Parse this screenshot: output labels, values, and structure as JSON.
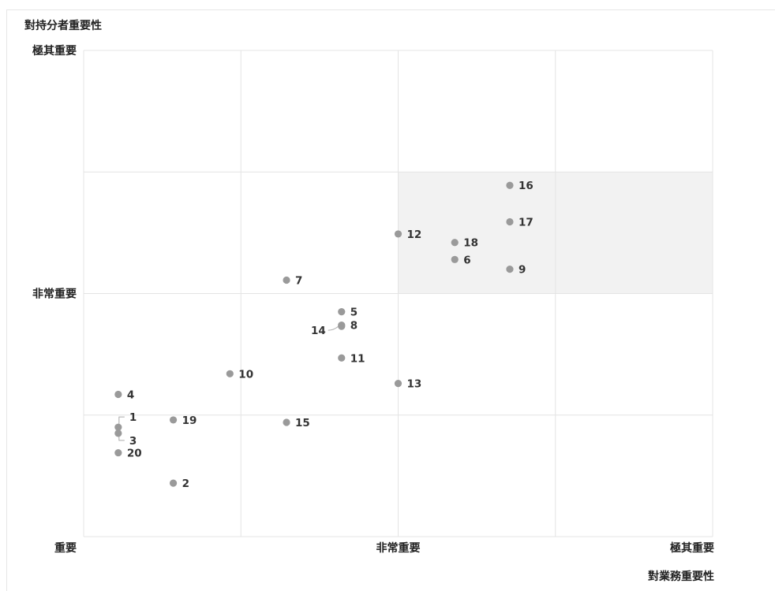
{
  "chart_data": {
    "type": "scatter",
    "ylabel": "對持分者重要性",
    "xlabel": "對業務重要性",
    "xlim": [
      0,
      4
    ],
    "ylim": [
      0,
      4
    ],
    "x_ticks": [
      {
        "value": 0,
        "label": "重要"
      },
      {
        "value": 2,
        "label": "非常重要"
      },
      {
        "value": 4,
        "label": "極其重要"
      }
    ],
    "y_ticks": [
      {
        "value": 2,
        "label": "非常重要"
      },
      {
        "value": 4,
        "label": "極其重要"
      }
    ],
    "grid": true,
    "highlight_region": {
      "x": [
        2,
        4
      ],
      "y": [
        2,
        3
      ]
    },
    "colors": {
      "point": "#9a9a9a",
      "grid": "#e4e4e4",
      "highlight": "#f2f2f2"
    },
    "points": [
      {
        "label": "1",
        "x": 0.22,
        "y": 0.9
      },
      {
        "label": "2",
        "x": 0.57,
        "y": 0.44
      },
      {
        "label": "3",
        "x": 0.22,
        "y": 0.85
      },
      {
        "label": "4",
        "x": 0.22,
        "y": 1.17
      },
      {
        "label": "5",
        "x": 1.64,
        "y": 1.85
      },
      {
        "label": "6",
        "x": 2.36,
        "y": 2.28
      },
      {
        "label": "7",
        "x": 1.29,
        "y": 2.11
      },
      {
        "label": "8",
        "x": 1.64,
        "y": 1.74
      },
      {
        "label": "9",
        "x": 2.71,
        "y": 2.2
      },
      {
        "label": "10",
        "x": 0.93,
        "y": 1.34
      },
      {
        "label": "11",
        "x": 1.64,
        "y": 1.47
      },
      {
        "label": "12",
        "x": 2.0,
        "y": 2.49
      },
      {
        "label": "13",
        "x": 2.0,
        "y": 1.26
      },
      {
        "label": "14",
        "x": 1.64,
        "y": 1.73
      },
      {
        "label": "15",
        "x": 1.29,
        "y": 0.94
      },
      {
        "label": "16",
        "x": 2.71,
        "y": 2.89
      },
      {
        "label": "17",
        "x": 2.71,
        "y": 2.59
      },
      {
        "label": "18",
        "x": 2.36,
        "y": 2.42
      },
      {
        "label": "19",
        "x": 0.57,
        "y": 0.96
      },
      {
        "label": "20",
        "x": 0.22,
        "y": 0.69
      }
    ]
  }
}
